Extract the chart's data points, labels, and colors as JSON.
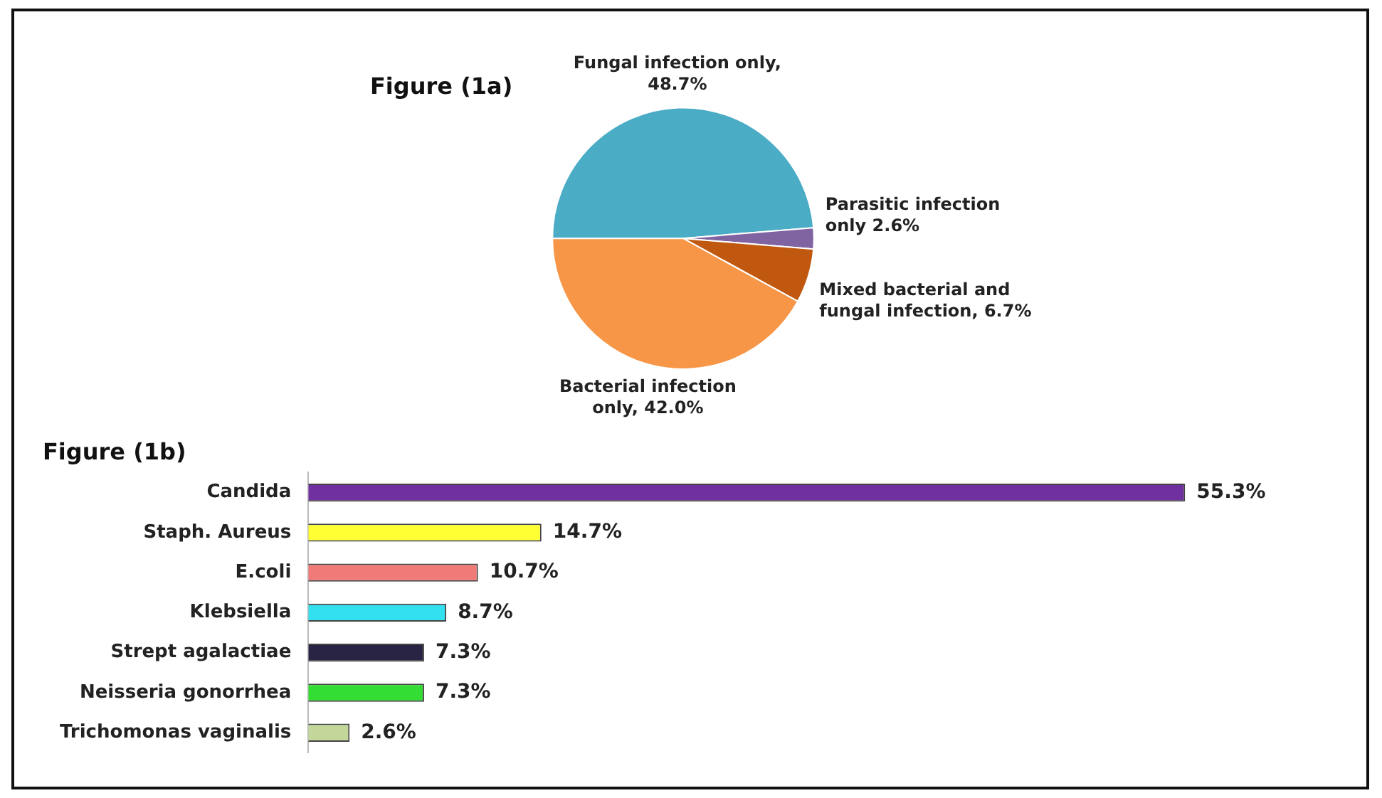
{
  "chart_data": [
    {
      "type": "pie",
      "title": "Figure (1a)",
      "categories": [
        "Fungal infection only, 48.7%",
        "Parasitic infection only 2.6%",
        "Mixed bacterial and fungal infection, 6.7%",
        "Bacterial infection only, 42.0%"
      ],
      "values": [
        48.7,
        2.6,
        6.7,
        42.0
      ],
      "colors": [
        "#4bacc6",
        "#8064a2",
        "#c0580f",
        "#f79646"
      ],
      "legend": false
    },
    {
      "type": "bar",
      "orientation": "horizontal",
      "title": "Figure (1b)",
      "categories": [
        "Candida",
        "Staph. Aureus",
        "E.coli",
        "Klebsiella",
        "Strept agalactiae",
        "Neisseria gonorrhea",
        "Trichomonas vaginalis"
      ],
      "values": [
        55.3,
        14.7,
        10.7,
        8.7,
        7.3,
        7.3,
        2.6
      ],
      "colors": [
        "#7030a0",
        "#ffff33",
        "#f07a78",
        "#33e0f0",
        "#2a2444",
        "#33dd33",
        "#c4d79b"
      ],
      "value_labels": [
        "55.3%",
        "14.7%",
        "10.7%",
        "8.7%",
        "7.3%",
        "7.3%",
        "2.6%"
      ],
      "tick_labels": "y",
      "legend": false
    }
  ]
}
